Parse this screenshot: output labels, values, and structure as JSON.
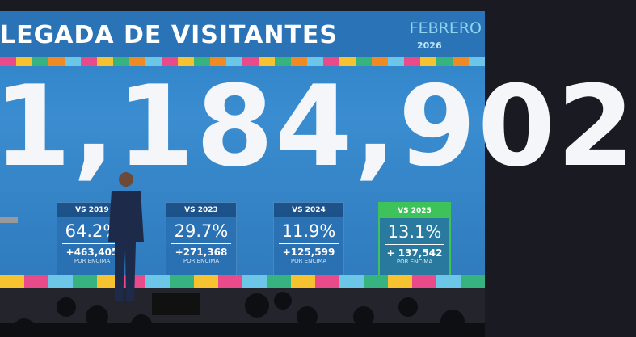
{
  "header": {
    "title": "LEGADA DE VISITANTES",
    "month": "FEBRERO",
    "year": "2026"
  },
  "total": "1,184,902",
  "comparisons": [
    {
      "label": "VS 2019",
      "percent": "64.2%",
      "increase": "+463,405",
      "note": "POR ENCIMA"
    },
    {
      "label": "VS 2023",
      "percent": "29.7%",
      "increase": "+271,368",
      "note": "POR ENCIMA"
    },
    {
      "label": "VS 2024",
      "percent": "11.9%",
      "increase": "+125,599",
      "note": "POR ENCIMA"
    },
    {
      "label": "VS 2025",
      "percent": "13.1%",
      "increase": "+ 137,542",
      "note": "POR ENCIMA"
    }
  ]
}
